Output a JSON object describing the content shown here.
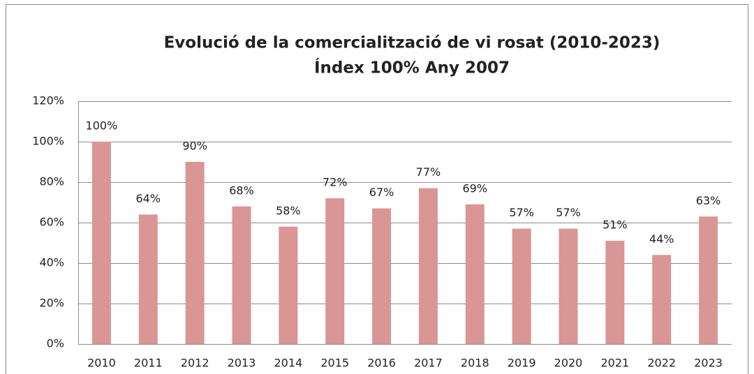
{
  "chart_data": {
    "type": "bar",
    "title": "Evolució de la comercialització de vi rosat (2010-2023)",
    "subtitle": "Índex 100% Any 2007",
    "categories": [
      "2010",
      "2011",
      "2012",
      "2013",
      "2014",
      "2015",
      "2016",
      "2017",
      "2018",
      "2019",
      "2020",
      "2021",
      "2022",
      "2023"
    ],
    "values": [
      100,
      64,
      90,
      68,
      58,
      72,
      67,
      77,
      69,
      57,
      57,
      51,
      44,
      63
    ],
    "value_labels": [
      "100%",
      "64%",
      "90%",
      "68%",
      "58%",
      "72%",
      "67%",
      "77%",
      "69%",
      "57%",
      "57%",
      "51%",
      "44%",
      "63%"
    ],
    "color": "#d99694",
    "ylim": [
      0,
      120
    ],
    "yticks": [
      {
        "value": 0,
        "label": "0%"
      },
      {
        "value": 20,
        "label": "20%"
      },
      {
        "value": 40,
        "label": "40%"
      },
      {
        "value": 60,
        "label": "60%"
      },
      {
        "value": 80,
        "label": "80%"
      },
      {
        "value": 100,
        "label": "100%"
      },
      {
        "value": 120,
        "label": "120%"
      }
    ],
    "grid": true
  }
}
